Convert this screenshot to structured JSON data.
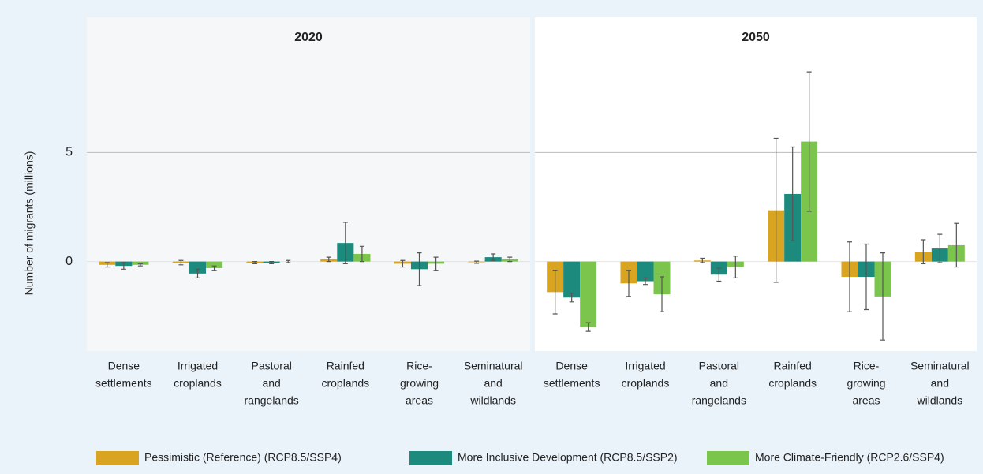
{
  "chart_data": {
    "type": "bar",
    "y_label": "Number of migrants (millions)",
    "ylim": [
      -4.1,
      11.2
    ],
    "yticks": [
      0,
      5
    ],
    "grid": true,
    "series": [
      {
        "name": "Pessimistic (Reference) (RCP8.5/SSP4)",
        "color": "#d9a520"
      },
      {
        "name": "More Inclusive Development (RCP8.5/SSP2)",
        "color": "#1c8a7d"
      },
      {
        "name": "More Climate-Friendly (RCP2.6/SSP4)",
        "color": "#7cc54d"
      }
    ],
    "panels": [
      {
        "title": "2020",
        "categories": [
          [
            "Dense",
            "settlements"
          ],
          [
            "Irrigated",
            "croplands"
          ],
          [
            "Pastoral",
            "and",
            "rangelands"
          ],
          [
            "Rainfed",
            "croplands"
          ],
          [
            "Rice-",
            "growing",
            "areas"
          ],
          [
            "Seminatural",
            "and",
            "wildlands"
          ]
        ],
        "series": [
          {
            "values": [
              -0.15,
              -0.05,
              -0.05,
              0.1,
              -0.1,
              -0.03
            ],
            "errors": [
              0.1,
              0.1,
              0.05,
              0.1,
              0.15,
              0.05
            ]
          },
          {
            "values": [
              -0.2,
              -0.55,
              -0.05,
              0.85,
              -0.35,
              0.2
            ],
            "errors": [
              0.15,
              0.2,
              0.05,
              0.95,
              0.75,
              0.15
            ]
          },
          {
            "values": [
              -0.15,
              -0.3,
              0.0,
              0.35,
              -0.1,
              0.1
            ],
            "errors": [
              0.05,
              0.1,
              0.05,
              0.35,
              0.3,
              0.1
            ]
          }
        ]
      },
      {
        "title": "2050",
        "categories": [
          [
            "Dense",
            "settlements"
          ],
          [
            "Irrigated",
            "croplands"
          ],
          [
            "Pastoral",
            "and",
            "rangelands"
          ],
          [
            "Rainfed",
            "croplands"
          ],
          [
            "Rice-",
            "growing",
            "areas"
          ],
          [
            "Seminatural",
            "and",
            "wildlands"
          ]
        ],
        "series": [
          {
            "values": [
              -1.4,
              -1.0,
              0.05,
              2.35,
              -0.7,
              0.45
            ],
            "errors": [
              1.0,
              0.6,
              0.1,
              3.3,
              1.6,
              0.55
            ]
          },
          {
            "values": [
              -1.65,
              -0.9,
              -0.6,
              3.1,
              -0.7,
              0.6
            ],
            "errors": [
              0.2,
              0.15,
              0.3,
              2.15,
              1.5,
              0.65
            ]
          },
          {
            "values": [
              -3.0,
              -1.5,
              -0.25,
              5.5,
              -1.6,
              0.75
            ],
            "errors": [
              0.2,
              0.8,
              0.5,
              3.2,
              2.0,
              1.0
            ]
          }
        ]
      }
    ]
  }
}
